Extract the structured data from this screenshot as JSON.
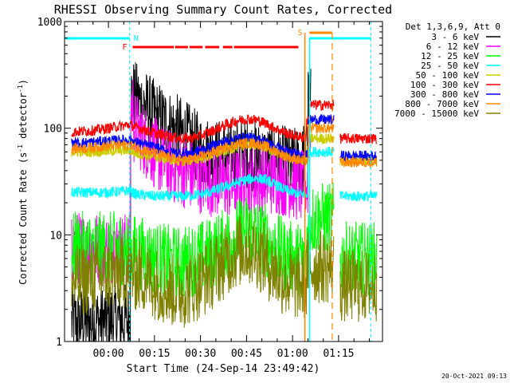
{
  "chart_data": {
    "type": "line",
    "title": "RHESSI Observing Summary Count Rates, Corrected",
    "xlabel": "Start Time (24-Sep-14 23:49:42)",
    "ylabel": "Corrected Count Rate (s",
    "ylabel_sup1": "-1",
    "ylabel_mid": " detector",
    "ylabel_sup2": "-1",
    "ylabel_end": ")",
    "yscale": "log",
    "ylim": [
      1,
      1000
    ],
    "xlim_minutes": [
      -14.3,
      89.3
    ],
    "y_ticks": [
      {
        "value": 1,
        "label": "1"
      },
      {
        "value": 10,
        "label": "10"
      },
      {
        "value": 100,
        "label": "100"
      },
      {
        "value": 1000,
        "label": "1000"
      }
    ],
    "x_ticks": [
      {
        "value": 0,
        "label": "00:00"
      },
      {
        "value": 15,
        "label": "00:15"
      },
      {
        "value": 30,
        "label": "00:30"
      },
      {
        "value": 45,
        "label": "00:45"
      },
      {
        "value": 60,
        "label": "01:00"
      },
      {
        "value": 75,
        "label": "01:15"
      }
    ],
    "legend_title": "Det 1,3,6,9, Att 0",
    "legend_position": "right",
    "series": [
      {
        "name": "3 - 6 keV",
        "color": "#000000",
        "x": [
          -12,
          -5,
          0,
          6.9,
          7.6,
          9,
          12,
          15,
          18,
          21,
          24,
          27,
          30,
          33,
          36,
          39,
          42,
          45,
          48,
          51,
          54,
          57,
          60,
          63,
          64,
          66
        ],
        "y": [
          1.5,
          1.5,
          1.6,
          1.6,
          200,
          190,
          160,
          130,
          115,
          100,
          88,
          74,
          62,
          58,
          55,
          54,
          56,
          58,
          54,
          50,
          49,
          48,
          46,
          47,
          60,
          170
        ]
      },
      {
        "name": "6 - 12 keV",
        "color": "#ff00ff",
        "x": [
          -12,
          -5,
          0,
          6.9,
          7.6,
          9,
          12,
          15,
          18,
          21,
          24,
          27,
          30,
          33,
          36,
          39,
          42,
          45,
          48,
          51,
          54,
          57,
          60,
          63,
          64,
          66
        ],
        "y": [
          7.5,
          7.5,
          7.5,
          7.5,
          160,
          100,
          75,
          60,
          48,
          43,
          40,
          37,
          35,
          33,
          31,
          30,
          30,
          31,
          32,
          33,
          34,
          33,
          31,
          28,
          30,
          70
        ]
      },
      {
        "name": "12 - 25 keV",
        "color": "#00ff00",
        "x": [
          -12,
          -5,
          0,
          6.9,
          9,
          12,
          15,
          18,
          21,
          24,
          27,
          30,
          33,
          36,
          39,
          42,
          45,
          48,
          51,
          54,
          57,
          60,
          63,
          64,
          65,
          66,
          74,
          75.5,
          85,
          87.5
        ],
        "y": [
          7.5,
          7.5,
          7.5,
          7.5,
          7,
          6.5,
          6,
          5.8,
          5.5,
          5.5,
          5.8,
          6.2,
          6.6,
          7.5,
          8.5,
          10,
          11,
          10.5,
          9,
          7.5,
          6.5,
          6,
          6,
          6,
          10,
          14,
          14,
          6,
          6,
          6
        ]
      },
      {
        "name": "25 - 50 keV",
        "color": "#00ffff",
        "x": [
          -12,
          -5,
          0,
          6.9,
          9,
          12,
          15,
          18,
          21,
          24,
          27,
          30,
          33,
          36,
          39,
          42,
          45,
          48,
          51,
          54,
          57,
          60,
          63,
          64,
          66,
          74,
          75.5,
          85,
          87.5
        ],
        "y": [
          25,
          25,
          25,
          26,
          24,
          23.5,
          23,
          23,
          23,
          23,
          23.5,
          24,
          25,
          27,
          29,
          31,
          33,
          34,
          33,
          30,
          27,
          25,
          24,
          24,
          60,
          60,
          23,
          23,
          23
        ]
      },
      {
        "name": "50 - 100 keV",
        "color": "#cccc00",
        "x": [
          -12,
          -5,
          0,
          6.9,
          9,
          12,
          15,
          18,
          21,
          24,
          27,
          30,
          33,
          36,
          39,
          42,
          45,
          48,
          51,
          54,
          57,
          60,
          63,
          64,
          66,
          74,
          75.5,
          85,
          87.5
        ],
        "y": [
          60,
          60,
          61,
          62,
          58,
          56,
          54,
          52,
          50,
          49,
          50,
          52,
          55,
          59,
          63,
          67,
          70,
          70,
          66,
          61,
          56,
          52,
          50,
          50,
          80,
          80,
          50,
          50,
          50
        ]
      },
      {
        "name": "100 - 300 keV",
        "color": "#ff0000",
        "x": [
          -12,
          -5,
          0,
          6.9,
          9,
          12,
          15,
          18,
          21,
          24,
          27,
          30,
          33,
          36,
          39,
          42,
          45,
          48,
          51,
          54,
          57,
          60,
          63,
          64,
          65,
          66,
          74,
          75.5,
          85,
          87.5
        ],
        "y": [
          92,
          95,
          100,
          108,
          102,
          96,
          90,
          86,
          82,
          80,
          81,
          85,
          92,
          101,
          110,
          118,
          122,
          120,
          112,
          101,
          92,
          86,
          82,
          82,
          120,
          165,
          165,
          80,
          80,
          80
        ]
      },
      {
        "name": "300 - 800 keV",
        "color": "#0000ff",
        "x": [
          -12,
          -5,
          0,
          6.9,
          9,
          12,
          15,
          18,
          21,
          24,
          27,
          30,
          33,
          36,
          39,
          42,
          45,
          48,
          51,
          54,
          57,
          60,
          63,
          64,
          66,
          74,
          75.5,
          85,
          87.5
        ],
        "y": [
          72,
          74,
          76,
          78,
          74,
          70,
          66,
          62,
          59,
          58,
          59,
          62,
          66,
          72,
          77,
          80,
          82,
          80,
          75,
          68,
          62,
          58,
          56,
          56,
          120,
          120,
          55,
          55,
          55
        ]
      },
      {
        "name": "800 - 7000 keV",
        "color": "#ff8800",
        "x": [
          -12,
          -5,
          0,
          6.9,
          9,
          12,
          15,
          18,
          21,
          24,
          27,
          30,
          33,
          36,
          39,
          42,
          45,
          48,
          51,
          54,
          57,
          60,
          63,
          64,
          66,
          74,
          75.5,
          85,
          87.5
        ],
        "y": [
          64,
          66,
          68,
          70,
          66,
          62,
          58,
          55,
          52,
          50,
          51,
          54,
          58,
          62,
          67,
          71,
          73,
          72,
          68,
          62,
          56,
          52,
          50,
          50,
          100,
          100,
          48,
          48,
          48
        ]
      },
      {
        "name": "7000 - 15000 keV",
        "color": "#808000",
        "x": [
          -12,
          -5,
          0,
          6.9,
          9,
          12,
          15,
          18,
          21,
          24,
          27,
          30,
          33,
          36,
          39,
          42,
          45,
          48,
          51,
          54,
          57,
          60,
          63,
          64,
          65,
          74,
          75.5,
          85,
          87.5
        ],
        "y": [
          3.5,
          4,
          4.2,
          4.5,
          4.2,
          4,
          3.6,
          3.2,
          3,
          2.9,
          3.2,
          3.6,
          4.2,
          5,
          6,
          7,
          7.5,
          7,
          5.8,
          4.6,
          3.8,
          3.5,
          3.5,
          3.5,
          5,
          5,
          3.3,
          3.3,
          3.3
        ]
      }
    ],
    "annotations": {
      "night_label": "N",
      "flare_label": "F",
      "saa_label": "S",
      "night_segments": [
        {
          "x": [
            -14.3,
            6.9
          ]
        },
        {
          "x": [
            65.5,
            85.5
          ]
        }
      ],
      "night_dashed": [
        6.9,
        85.5
      ],
      "flare_segments": [
        [
          7.9,
          21.3
        ],
        [
          21.7,
          25.9
        ],
        [
          26.4,
          30.7
        ],
        [
          31.5,
          36.1
        ],
        [
          37.3,
          40.4
        ],
        [
          40.9,
          61.9
        ]
      ],
      "saa_segment": [
        65.5,
        72.9
      ],
      "saa_solid": 64.0,
      "saa_dashed": 72.9,
      "gap_start": 75.5,
      "night_color": "#00ffff",
      "flare_color": "#ff0000",
      "saa_color": "#ff8800"
    },
    "grid": false
  },
  "footer": {
    "timestamp": "20-Oct-2021 09:13"
  },
  "colors": {
    "background": "#ffffff",
    "axes": "#000000"
  }
}
